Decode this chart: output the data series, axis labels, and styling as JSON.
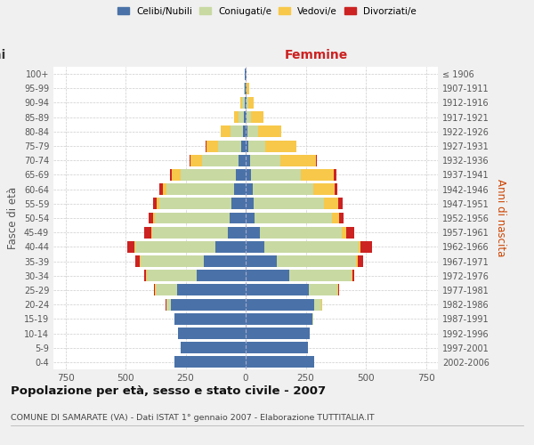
{
  "age_groups": [
    "0-4",
    "5-9",
    "10-14",
    "15-19",
    "20-24",
    "25-29",
    "30-34",
    "35-39",
    "40-44",
    "45-49",
    "50-54",
    "55-59",
    "60-64",
    "65-69",
    "70-74",
    "75-79",
    "80-84",
    "85-89",
    "90-94",
    "95-99",
    "100+"
  ],
  "birth_years": [
    "2002-2006",
    "1997-2001",
    "1992-1996",
    "1987-1991",
    "1982-1986",
    "1977-1981",
    "1972-1976",
    "1967-1971",
    "1962-1966",
    "1957-1961",
    "1952-1956",
    "1947-1951",
    "1942-1946",
    "1937-1941",
    "1932-1936",
    "1927-1931",
    "1922-1926",
    "1917-1921",
    "1912-1916",
    "1907-1911",
    "≤ 1906"
  ],
  "male_celibi": [
    295,
    270,
    280,
    295,
    310,
    285,
    205,
    175,
    125,
    75,
    65,
    58,
    50,
    42,
    28,
    18,
    12,
    8,
    5,
    3,
    2
  ],
  "male_coniugati": [
    0,
    0,
    0,
    3,
    18,
    88,
    205,
    262,
    335,
    315,
    312,
    302,
    278,
    228,
    152,
    98,
    52,
    22,
    8,
    3,
    0
  ],
  "male_vedovi": [
    0,
    0,
    0,
    0,
    2,
    4,
    3,
    4,
    4,
    4,
    8,
    12,
    18,
    38,
    48,
    48,
    38,
    18,
    8,
    2,
    0
  ],
  "male_divorziati": [
    0,
    0,
    0,
    0,
    2,
    4,
    8,
    18,
    28,
    28,
    18,
    14,
    12,
    8,
    4,
    2,
    0,
    0,
    0,
    0,
    0
  ],
  "female_celibi": [
    285,
    258,
    265,
    278,
    285,
    262,
    182,
    128,
    78,
    58,
    38,
    32,
    28,
    22,
    18,
    10,
    8,
    4,
    4,
    2,
    2
  ],
  "female_coniugati": [
    0,
    0,
    0,
    5,
    28,
    118,
    258,
    332,
    392,
    342,
    322,
    295,
    255,
    208,
    128,
    72,
    42,
    18,
    7,
    3,
    0
  ],
  "female_vedovi": [
    0,
    0,
    0,
    0,
    4,
    5,
    5,
    8,
    8,
    18,
    28,
    58,
    88,
    138,
    145,
    128,
    98,
    52,
    24,
    8,
    2
  ],
  "female_divorziati": [
    0,
    0,
    0,
    0,
    2,
    4,
    8,
    22,
    48,
    32,
    18,
    18,
    12,
    8,
    4,
    2,
    0,
    0,
    0,
    0,
    0
  ],
  "colors": {
    "celibi": "#4a72a8",
    "coniugati": "#c8d9a2",
    "vedovi": "#f7c84a",
    "divorziati": "#cc2222"
  },
  "title": "Popolazione per età, sesso e stato civile - 2007",
  "subtitle": "COMUNE DI SAMARATE (VA) - Dati ISTAT 1° gennaio 2007 - Elaborazione TUTTITALIA.IT",
  "xlabel_right": "Femmine",
  "ylabel_left": "Fasce di età",
  "ylabel_right": "Anni di nascita",
  "xlim": 800,
  "background_color": "#f0f0f0",
  "plot_bg": "#ffffff"
}
